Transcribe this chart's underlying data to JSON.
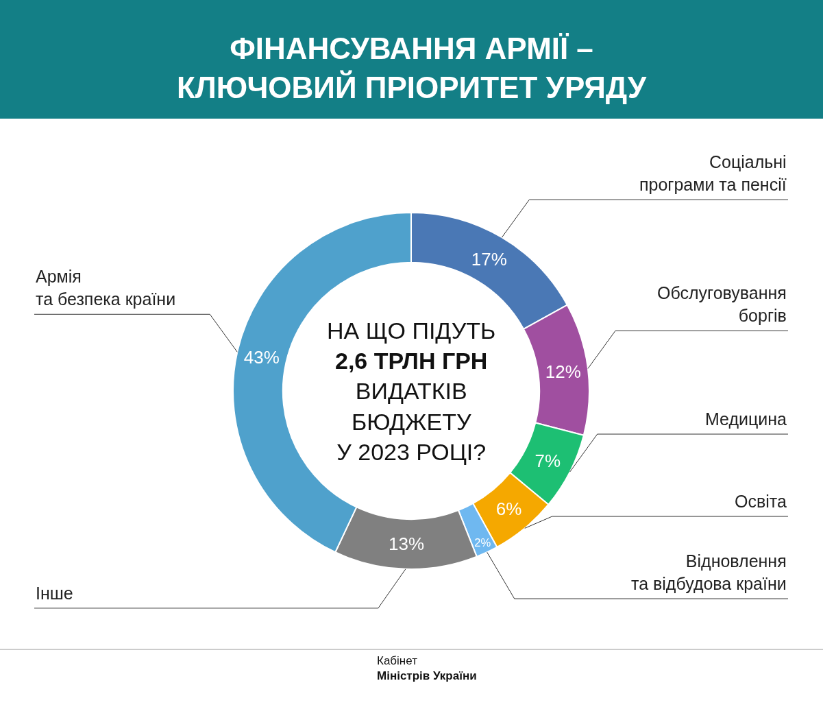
{
  "chart_data": {
    "type": "donut",
    "title": "ФІНАНСУВАННЯ АРМІЇ –\nКЛЮЧОВИЙ ПРІОРИТЕТ УРЯДУ",
    "categories": [
      "Соціальні\nпрограми та пенсії",
      "Обслуговування\nборгів",
      "Медицина",
      "Освіта",
      "Відновлення\nта відбудова країни",
      "Інше",
      "Армія\nта безпека країни"
    ],
    "values": [
      17,
      12,
      7,
      6,
      2,
      13,
      43
    ],
    "value_labels": [
      "17%",
      "12%",
      "7%",
      "6%",
      "2%",
      "13%",
      "43%"
    ],
    "colors": [
      "#4a78b5",
      "#a04fa0",
      "#1dbf73",
      "#f5a800",
      "#6fb8f0",
      "#808080",
      "#4fa1cc"
    ],
    "annotations": [
      "НА ЩО ПІДУТЬ\n2,6 ТРЛН ГРН\nВИДАТКІВ\nБЮДЖЕТУ\nУ 2023 РОЦІ?",
      "Кабінет\nМіністрів України"
    ],
    "legend": false
  }
}
